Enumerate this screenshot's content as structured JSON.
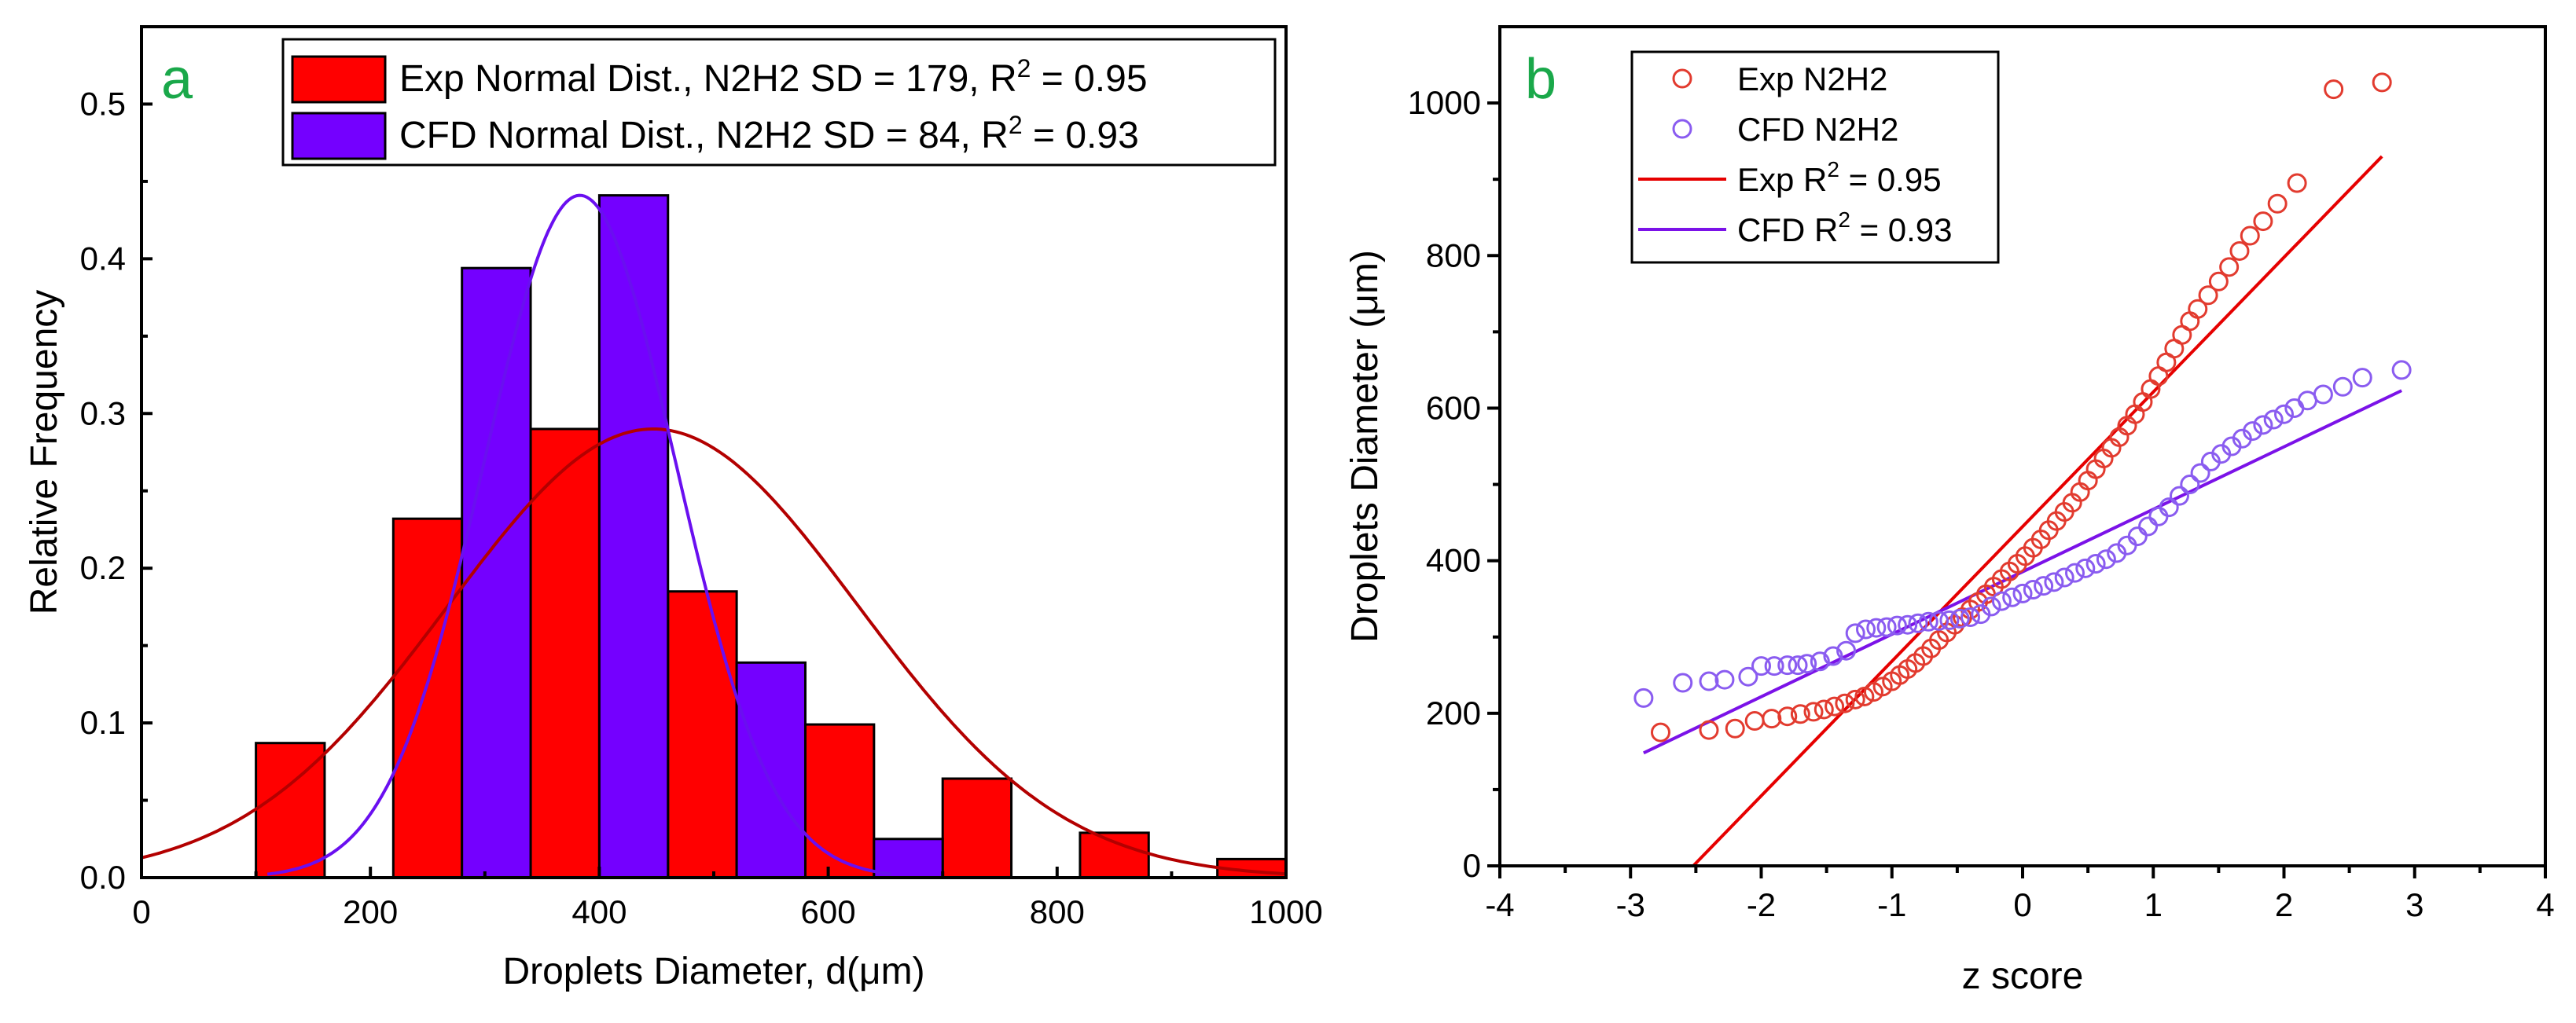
{
  "colors": {
    "exp_bar": "#ff0000",
    "cfd_bar": "#7400ff",
    "exp_curve": "#b30000",
    "cfd_curve": "#6a0ff0",
    "exp_points": "#e23b2f",
    "cfd_points": "#8a5cf0",
    "exp_line": "#e60000",
    "cfd_line": "#7b12e8",
    "panel_letter": "#1aa84a"
  },
  "chart_data": [
    {
      "type": "bar",
      "panel": "a",
      "xlabel": "Droplets Diameter, d(μm)",
      "ylabel": "Relative Frequency",
      "xlim": [
        0,
        1000
      ],
      "ylim": [
        0,
        0.55
      ],
      "xticks": [
        0,
        200,
        400,
        600,
        800,
        1000
      ],
      "yticks": [
        0.0,
        0.1,
        0.2,
        0.3,
        0.4,
        0.5
      ],
      "legend_position": "top-right",
      "legend": [
        {
          "series": "Exp",
          "text": "Exp Normal Dist., N2H2 SD = 179, R",
          "sup": "2",
          "tail": " = 0.95"
        },
        {
          "series": "CFD",
          "text": "CFD Normal Dist., N2H2 SD = 84, R",
          "sup": "2",
          "tail": " = 0.93"
        }
      ],
      "exp_bins": [
        {
          "start": 100,
          "end": 160,
          "value": 0.087
        },
        {
          "start": 220,
          "end": 280,
          "value": 0.232
        },
        {
          "start": 340,
          "end": 400,
          "value": 0.29
        },
        {
          "start": 460,
          "end": 520,
          "value": 0.185
        },
        {
          "start": 580,
          "end": 640,
          "value": 0.099
        },
        {
          "start": 700,
          "end": 760,
          "value": 0.064
        },
        {
          "start": 820,
          "end": 880,
          "value": 0.029
        },
        {
          "start": 940,
          "end": 1000,
          "value": 0.012
        }
      ],
      "cfd_bins": [
        {
          "start": 280,
          "end": 340,
          "value": 0.394
        },
        {
          "start": 400,
          "end": 460,
          "value": 0.441
        },
        {
          "start": 520,
          "end": 580,
          "value": 0.139
        },
        {
          "start": 640,
          "end": 700,
          "value": 0.025
        }
      ],
      "exp_fit": {
        "mean": 447,
        "sd": 179,
        "peak": 0.29,
        "x_range": [
          0,
          1000
        ]
      },
      "cfd_fit": {
        "mean": 383,
        "sd": 84,
        "peak": 0.441,
        "x_range": [
          110,
          655
        ]
      }
    },
    {
      "type": "scatter",
      "panel": "b",
      "xlabel": "z score",
      "ylabel": "Droplets Diameter (μm)",
      "xlim": [
        -4,
        4
      ],
      "ylim": [
        0,
        1100
      ],
      "xticks": [
        -4,
        -3,
        -2,
        -1,
        0,
        1,
        2,
        3,
        4
      ],
      "yticks": [
        0,
        200,
        400,
        600,
        800,
        1000
      ],
      "legend_position": "top-left",
      "legend": [
        {
          "series": "exp_points",
          "text": "Exp N2H2",
          "sup": "",
          "tail": ""
        },
        {
          "series": "cfd_points",
          "text": "CFD N2H2",
          "sup": "",
          "tail": ""
        },
        {
          "series": "exp_line",
          "text": "Exp R",
          "sup": "2",
          "tail": " = 0.95"
        },
        {
          "series": "cfd_line",
          "text": "CFD R",
          "sup": "2",
          "tail": " = 0.93"
        }
      ],
      "exp_points": [
        [
          -2.77,
          175
        ],
        [
          -2.4,
          178
        ],
        [
          -2.2,
          180
        ],
        [
          -2.05,
          190
        ],
        [
          -1.92,
          193
        ],
        [
          -1.8,
          196
        ],
        [
          -1.7,
          199
        ],
        [
          -1.6,
          202
        ],
        [
          -1.52,
          205
        ],
        [
          -1.44,
          209
        ],
        [
          -1.36,
          213
        ],
        [
          -1.28,
          218
        ],
        [
          -1.21,
          222
        ],
        [
          -1.14,
          228
        ],
        [
          -1.07,
          235
        ],
        [
          -1.0,
          242
        ],
        [
          -0.94,
          250
        ],
        [
          -0.88,
          258
        ],
        [
          -0.82,
          266
        ],
        [
          -0.76,
          275
        ],
        [
          -0.7,
          285
        ],
        [
          -0.64,
          296
        ],
        [
          -0.58,
          306
        ],
        [
          -0.52,
          316
        ],
        [
          -0.46,
          326
        ],
        [
          -0.4,
          336
        ],
        [
          -0.34,
          346
        ],
        [
          -0.28,
          356
        ],
        [
          -0.22,
          366
        ],
        [
          -0.16,
          376
        ],
        [
          -0.1,
          386
        ],
        [
          -0.04,
          396
        ],
        [
          0.02,
          406
        ],
        [
          0.08,
          417
        ],
        [
          0.14,
          428
        ],
        [
          0.2,
          440
        ],
        [
          0.26,
          452
        ],
        [
          0.32,
          464
        ],
        [
          0.38,
          476
        ],
        [
          0.44,
          490
        ],
        [
          0.5,
          505
        ],
        [
          0.56,
          520
        ],
        [
          0.62,
          534
        ],
        [
          0.68,
          548
        ],
        [
          0.74,
          562
        ],
        [
          0.8,
          577
        ],
        [
          0.86,
          592
        ],
        [
          0.92,
          608
        ],
        [
          0.98,
          625
        ],
        [
          1.04,
          642
        ],
        [
          1.1,
          660
        ],
        [
          1.16,
          678
        ],
        [
          1.22,
          696
        ],
        [
          1.28,
          714
        ],
        [
          1.34,
          730
        ],
        [
          1.42,
          748
        ],
        [
          1.5,
          766
        ],
        [
          1.58,
          785
        ],
        [
          1.66,
          806
        ],
        [
          1.74,
          826
        ],
        [
          1.84,
          845
        ],
        [
          1.95,
          868
        ],
        [
          2.1,
          895
        ],
        [
          2.38,
          1018
        ],
        [
          2.75,
          1027
        ]
      ],
      "cfd_points": [
        [
          -2.9,
          220
        ],
        [
          -2.6,
          240
        ],
        [
          -2.4,
          242
        ],
        [
          -2.28,
          244
        ],
        [
          -2.1,
          248
        ],
        [
          -2.0,
          262
        ],
        [
          -1.9,
          262
        ],
        [
          -1.8,
          263
        ],
        [
          -1.72,
          263
        ],
        [
          -1.65,
          265
        ],
        [
          -1.55,
          268
        ],
        [
          -1.45,
          275
        ],
        [
          -1.35,
          282
        ],
        [
          -1.28,
          305
        ],
        [
          -1.2,
          310
        ],
        [
          -1.12,
          312
        ],
        [
          -1.04,
          313
        ],
        [
          -0.96,
          315
        ],
        [
          -0.88,
          316
        ],
        [
          -0.8,
          318
        ],
        [
          -0.72,
          320
        ],
        [
          -0.64,
          321
        ],
        [
          -0.56,
          322
        ],
        [
          -0.48,
          324
        ],
        [
          -0.4,
          326
        ],
        [
          -0.32,
          330
        ],
        [
          -0.24,
          340
        ],
        [
          -0.16,
          347
        ],
        [
          -0.08,
          352
        ],
        [
          0.0,
          357
        ],
        [
          0.08,
          362
        ],
        [
          0.16,
          367
        ],
        [
          0.24,
          372
        ],
        [
          0.32,
          378
        ],
        [
          0.4,
          384
        ],
        [
          0.48,
          390
        ],
        [
          0.56,
          396
        ],
        [
          0.64,
          402
        ],
        [
          0.72,
          410
        ],
        [
          0.8,
          420
        ],
        [
          0.88,
          432
        ],
        [
          0.96,
          445
        ],
        [
          1.04,
          458
        ],
        [
          1.12,
          470
        ],
        [
          1.2,
          485
        ],
        [
          1.28,
          500
        ],
        [
          1.36,
          515
        ],
        [
          1.44,
          530
        ],
        [
          1.52,
          540
        ],
        [
          1.6,
          550
        ],
        [
          1.68,
          560
        ],
        [
          1.76,
          570
        ],
        [
          1.84,
          578
        ],
        [
          1.92,
          585
        ],
        [
          2.0,
          592
        ],
        [
          2.08,
          600
        ],
        [
          2.18,
          610
        ],
        [
          2.3,
          618
        ],
        [
          2.45,
          628
        ],
        [
          2.6,
          640
        ],
        [
          2.9,
          650
        ]
      ],
      "exp_line": {
        "x": [
          -2.52,
          2.75
        ],
        "y": [
          0,
          930
        ]
      },
      "cfd_line": {
        "x": [
          -2.9,
          2.9
        ],
        "y": [
          148,
          623
        ]
      }
    }
  ]
}
